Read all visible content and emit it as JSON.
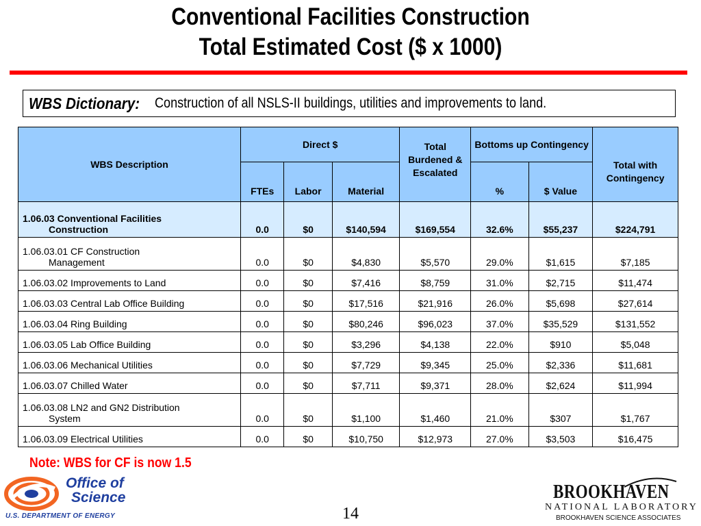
{
  "title": {
    "line1": "Conventional Facilities Construction",
    "line2": "Total Estimated Cost ($ x 1000)"
  },
  "wbs_dictionary": {
    "label": "WBS Dictionary:",
    "text": "Construction of all NSLS-II buildings, utilities and improvements to land."
  },
  "table": {
    "headers": {
      "wbs_description": "WBS Description",
      "direct": "Direct $",
      "total_burdened": "Total Burdened & Escalated",
      "bottoms_up": "Bottoms up Contingency",
      "total_with": "Total with Contingency",
      "ftes": "FTEs",
      "labor": "Labor",
      "material": "Material",
      "pct": "%",
      "value": "$ Value"
    },
    "total_row": {
      "desc_line1": "1.06.03 Conventional Facilities",
      "desc_line2": "Construction",
      "ftes": "0.0",
      "labor": "$0",
      "material": "$140,594",
      "burdened": "$169,554",
      "pct": "32.6%",
      "value": "$55,237",
      "total": "$224,791"
    },
    "rows": [
      {
        "desc_line1": "1.06.03.01 CF Construction",
        "desc_line2": "Management",
        "ftes": "0.0",
        "labor": "$0",
        "material": "$4,830",
        "burdened": "$5,570",
        "pct": "29.0%",
        "value": "$1,615",
        "total": "$7,185"
      },
      {
        "desc_line1": "1.06.03.02 Improvements to Land",
        "desc_line2": "",
        "ftes": "0.0",
        "labor": "$0",
        "material": "$7,416",
        "burdened": "$8,759",
        "pct": "31.0%",
        "value": "$2,715",
        "total": "$11,474"
      },
      {
        "desc_line1": "1.06.03.03 Central Lab Office Building",
        "desc_line2": "",
        "ftes": "0.0",
        "labor": "$0",
        "material": "$17,516",
        "burdened": "$21,916",
        "pct": "26.0%",
        "value": "$5,698",
        "total": "$27,614"
      },
      {
        "desc_line1": "1.06.03.04 Ring Building",
        "desc_line2": "",
        "ftes": "0.0",
        "labor": "$0",
        "material": "$80,246",
        "burdened": "$96,023",
        "pct": "37.0%",
        "value": "$35,529",
        "total": "$131,552"
      },
      {
        "desc_line1": "1.06.03.05 Lab Office Building",
        "desc_line2": "",
        "ftes": "0.0",
        "labor": "$0",
        "material": "$3,296",
        "burdened": "$4,138",
        "pct": "22.0%",
        "value": "$910",
        "total": "$5,048"
      },
      {
        "desc_line1": "1.06.03.06 Mechanical Utilities",
        "desc_line2": "",
        "ftes": "0.0",
        "labor": "$0",
        "material": "$7,729",
        "burdened": "$9,345",
        "pct": "25.0%",
        "value": "$2,336",
        "total": "$11,681"
      },
      {
        "desc_line1": "1.06.03.07 Chilled Water",
        "desc_line2": "",
        "ftes": "0.0",
        "labor": "$0",
        "material": "$7,711",
        "burdened": "$9,371",
        "pct": "28.0%",
        "value": "$2,624",
        "total": "$11,994"
      },
      {
        "desc_line1": "1.06.03.08 LN2 and GN2 Distribution",
        "desc_line2": "System",
        "ftes": "0.0",
        "labor": "$0",
        "material": "$1,100",
        "burdened": "$1,460",
        "pct": "21.0%",
        "value": "$307",
        "total": "$1,767"
      },
      {
        "desc_line1": "1.06.03.09 Electrical Utilities",
        "desc_line2": "",
        "ftes": "0.0",
        "labor": "$0",
        "material": "$10,750",
        "burdened": "$12,973",
        "pct": "27.0%",
        "value": "$3,503",
        "total": "$16,475"
      }
    ]
  },
  "note": "Note: WBS for CF is now 1.5",
  "page_number": "14",
  "logos": {
    "office_of_science": {
      "line1": "Office of",
      "line2": "Science",
      "sub": "U.S. DEPARTMENT OF ENERGY",
      "icon": "doe-swirl-icon"
    },
    "brookhaven": {
      "name": "BROOKHAVEN",
      "lab": "NATIONAL LABORATORY",
      "assoc": "BROOKHAVEN SCIENCE ASSOCIATES",
      "icon": "bnl-swoosh-icon"
    }
  },
  "colors": {
    "header_fill": "#99ccff",
    "total_row_fill": "#d6ecff",
    "accent_red": "#ff0000",
    "logo_blue": "#1f3f9f"
  }
}
